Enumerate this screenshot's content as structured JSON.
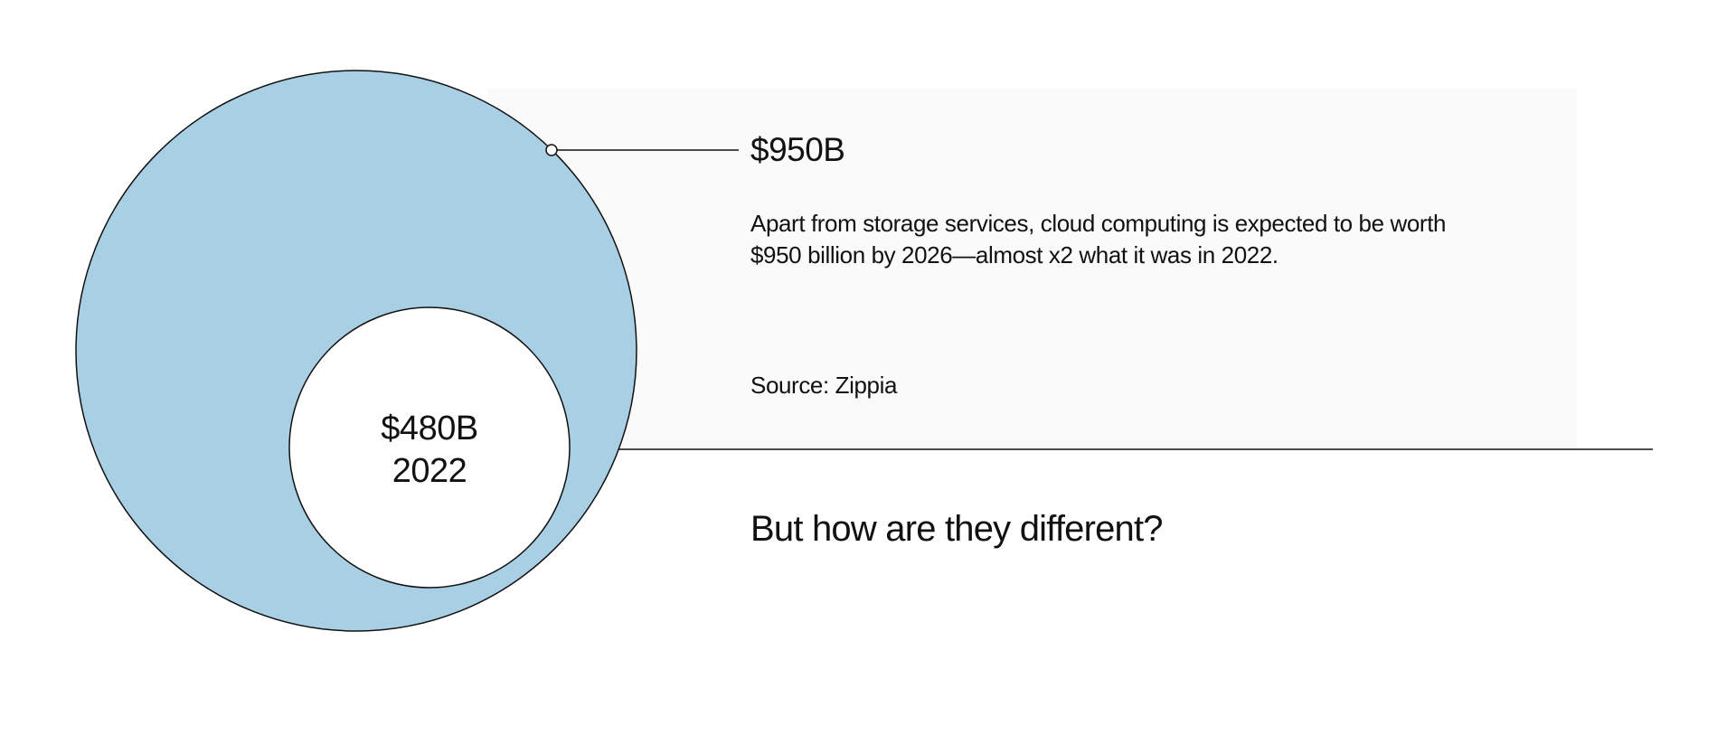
{
  "chart_data": {
    "type": "bubble",
    "bubbles": [
      {
        "year": 2026,
        "value": 950,
        "label": "$950B",
        "color": "#a8cfe3"
      },
      {
        "year": 2022,
        "value": 480,
        "label": "$480B",
        "year_label": "2022",
        "color": "#ffffff"
      }
    ],
    "unit": "billion USD"
  },
  "annotation": {
    "value": "$950B",
    "description": "Apart from storage services, cloud computing is expected to be worth $950 billion by 2026—almost x2 what it was in 2022.",
    "source": "Source: Zippia"
  },
  "question": "But how are they different?",
  "colors": {
    "outer": "#a8cfe3",
    "panel": "#fafafa",
    "stroke": "#111111"
  }
}
